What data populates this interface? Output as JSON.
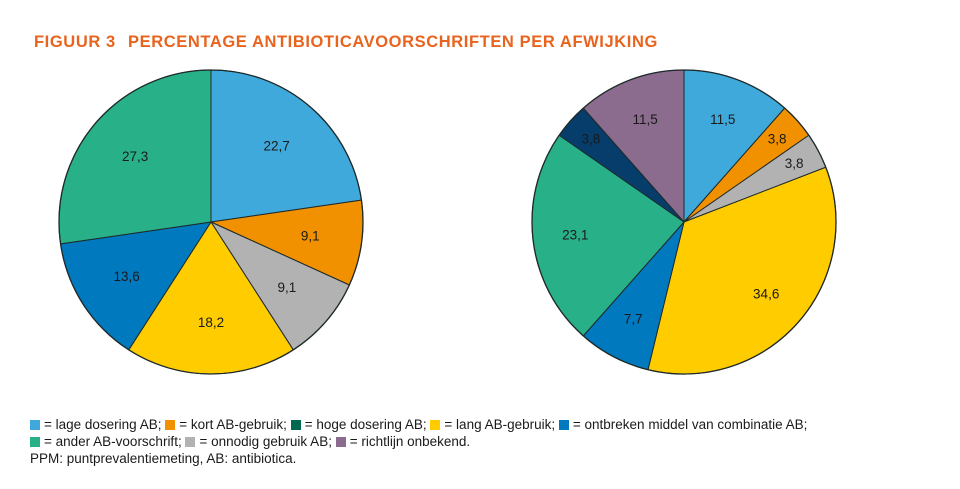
{
  "figure": {
    "number": "FIGUUR 3",
    "title": "PERCENTAGE ANTIBIOTICAVOORSCHRIFTEN PER AFWIJKING"
  },
  "colors": {
    "lage_dosering": "#3ea9da",
    "kort_gebruik": "#f29100",
    "hoge_dosering": "#00694f",
    "lang_gebruik": "#ffcc00",
    "ontbreken_middel": "#0079be",
    "ander_voorschrift": "#28b088",
    "onnodig_gebruik": "#b2b2b2",
    "richtlijn_onbekend": "#8b6b8e",
    "navy": "#063d6b"
  },
  "chart_data": [
    {
      "type": "pie",
      "start_angle_deg": 0,
      "direction": "clockwise",
      "slices": [
        {
          "label": "22,7",
          "value": 22.7,
          "color": "#3ea9da",
          "text": "dark"
        },
        {
          "label": "9,1",
          "value": 9.1,
          "color": "#f29100",
          "text": "dark"
        },
        {
          "label": "9,1",
          "value": 9.1,
          "color": "#b2b2b2",
          "text": "dark"
        },
        {
          "label": "18,2",
          "value": 18.2,
          "color": "#ffcc00",
          "text": "dark"
        },
        {
          "label": "13,6",
          "value": 13.6,
          "color": "#0079be",
          "text": "dark"
        },
        {
          "label": "27,3",
          "value": 27.3,
          "color": "#28b088",
          "text": "dark"
        }
      ]
    },
    {
      "type": "pie",
      "start_angle_deg": 0,
      "direction": "clockwise",
      "slices": [
        {
          "label": "11,5",
          "value": 11.5,
          "color": "#3ea9da",
          "text": "dark"
        },
        {
          "label": "3,8",
          "value": 3.8,
          "color": "#f29100",
          "text": "dark"
        },
        {
          "label": "3,8",
          "value": 3.8,
          "color": "#b2b2b2",
          "text": "dark"
        },
        {
          "label": "34,6",
          "value": 34.6,
          "color": "#ffcc00",
          "text": "dark"
        },
        {
          "label": "7,7",
          "value": 7.7,
          "color": "#0079be",
          "text": "dark"
        },
        {
          "label": "23,1",
          "value": 23.1,
          "color": "#28b088",
          "text": "dark"
        },
        {
          "label": "3,8",
          "value": 3.8,
          "color": "#063d6b",
          "text": "light"
        },
        {
          "label": "11,5",
          "value": 11.5,
          "color": "#8b6b8e",
          "text": "dark"
        }
      ]
    }
  ],
  "legend": {
    "lines": [
      [
        {
          "text": "= lage dosering AB;",
          "color": "#3ea9da"
        },
        {
          "text": "= kort AB-gebruik;",
          "color": "#f29100"
        },
        {
          "text": "= hoge dosering AB;",
          "color": "#00694f"
        },
        {
          "text": "= lang AB-gebruik;",
          "color": "#ffcc00"
        },
        {
          "text": "= ontbreken middel van combinatie AB;",
          "color": "#0079be"
        }
      ],
      [
        {
          "text": "= ander AB-voorschrift;",
          "color": "#28b088"
        },
        {
          "text": "= onnodig gebruik AB;",
          "color": "#b2b2b2"
        },
        {
          "text": "= richtlijn onbekend.",
          "color": "#8b6b8e"
        }
      ]
    ]
  },
  "note": "PPM: puntprevalentiemeting, AB: antibiotica."
}
